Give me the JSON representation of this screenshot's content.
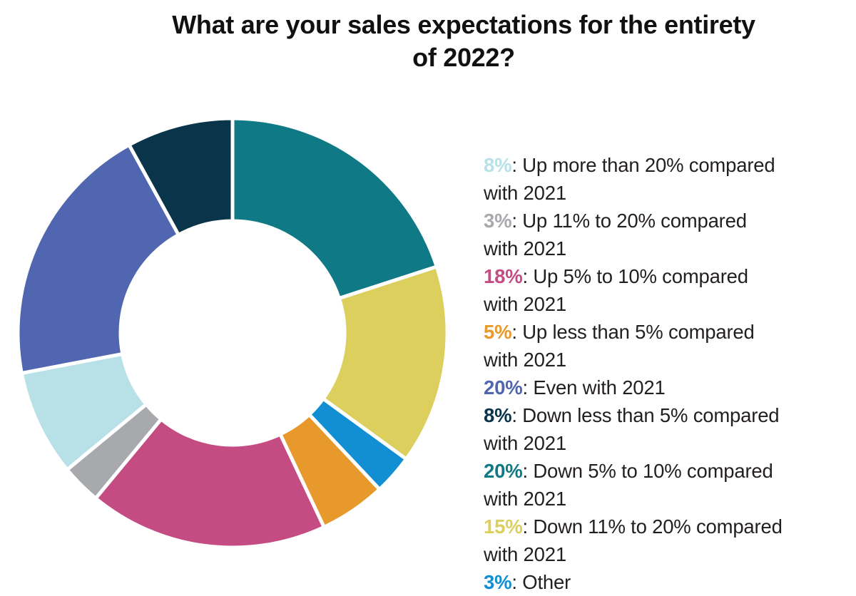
{
  "chart_data": {
    "type": "pie",
    "subtype": "donut",
    "title": "What are your sales expectations for the entirety\nof 2022?",
    "direction": "clockwise",
    "start_angle_deg": 0,
    "legend_position": "right",
    "separator": ": ",
    "items": [
      {
        "id": "up-more-than-20",
        "pct": "8%",
        "value": 8,
        "color": "#B7E1E7",
        "label": "Up more than 20% compared with 2021",
        "label_wrapped": "Up more than 20% compared\nwith 2021"
      },
      {
        "id": "up-11-to-20",
        "pct": "3%",
        "value": 3,
        "color": "#A8A9AD",
        "label": "Up 11% to 20% compared with 2021",
        "label_wrapped": "Up 11% to 20% compared\nwith 2021"
      },
      {
        "id": "up-5-to-10",
        "pct": "18%",
        "value": 18,
        "color": "#C44C83",
        "label": "Up 5% to 10% compared with 2021",
        "label_wrapped": "Up 5% to 10% compared\nwith 2021"
      },
      {
        "id": "up-less-than-5",
        "pct": "5%",
        "value": 5,
        "color": "#E8992B",
        "label": "Up less than 5% compared with 2021",
        "label_wrapped": "Up less than 5% compared\nwith 2021"
      },
      {
        "id": "even-with-2021",
        "pct": "20%",
        "value": 20,
        "color": "#5166B0",
        "label": "Even with 2021",
        "label_wrapped": "Even with 2021"
      },
      {
        "id": "down-less-than-5",
        "pct": "8%",
        "value": 8,
        "color": "#09344A",
        "label": "Down less than 5% compared with 2021",
        "label_wrapped": "Down less than 5% compared\nwith 2021"
      },
      {
        "id": "down-5-to-10",
        "pct": "20%",
        "value": 20,
        "color": "#0F7A85",
        "label": "Down 5% to 10% compared with 2021",
        "label_wrapped": "Down 5% to 10% compared\nwith 2021"
      },
      {
        "id": "down-11-to-20",
        "pct": "15%",
        "value": 15,
        "color": "#DCCF5E",
        "label": "Down 11% to 20% compared with 2021",
        "label_wrapped": "Down 11% to 20% compared\nwith 2021"
      },
      {
        "id": "other",
        "pct": "3%",
        "value": 3,
        "color": "#118FD2",
        "label": "Other",
        "label_wrapped": "Other"
      }
    ],
    "draw_order": [
      6,
      7,
      8,
      3,
      2,
      1,
      0,
      4,
      5
    ],
    "donut": {
      "gap_color": "#FFFFFF"
    }
  },
  "colors": {
    "text": "#231F20",
    "title": "#111111",
    "background": "#FFFFFF"
  }
}
